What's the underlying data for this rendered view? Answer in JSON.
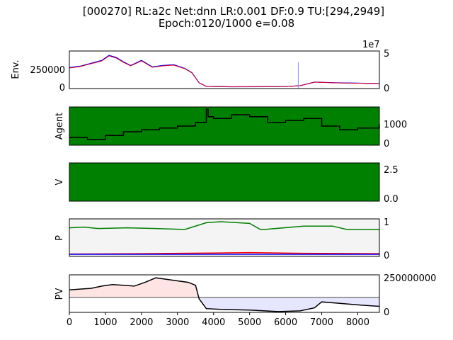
{
  "title_line1": "[000270] RL:a2c Net:dnn LR:0.001 DF:0.9 TU:[294,2949]",
  "title_line2": "Epoch:0120/1000 e=0.08",
  "colors": {
    "price": "#e0002a",
    "price_alt": "#0000ff",
    "volume": "#8c8cff",
    "agent_bg": "#008000",
    "v_bg": "#008000",
    "p_green": "#008000",
    "p_red": "#ff0000",
    "p_blue": "#0000ff",
    "pv_pos_fill": "#ffe4e4",
    "pv_neg_fill": "#e6e6ff",
    "pv_line": "#000000",
    "baseline": "#808080"
  },
  "chart_data": [
    {
      "type": "line",
      "ylabel": "Env.",
      "left_ticks": [
        "250000",
        "0"
      ],
      "right_ticks": [
        "5",
        "0"
      ],
      "right_offset": "1e7",
      "x": [
        0,
        300,
        600,
        900,
        1100,
        1300,
        1500,
        1700,
        2000,
        2300,
        2600,
        2900,
        3200,
        3400,
        3600,
        3800,
        4500,
        5500,
        6000,
        6400,
        6800,
        7400,
        8000,
        8600
      ],
      "close": [
        270000,
        290000,
        330000,
        370000,
        440000,
        410000,
        350000,
        300000,
        370000,
        280000,
        300000,
        310000,
        260000,
        200000,
        60000,
        10000,
        5000,
        6000,
        8000,
        20000,
        70000,
        60000,
        55000,
        50000
      ],
      "volume_peak_x": 6350,
      "volume_peak": 35000000
    },
    {
      "type": "line",
      "ylabel": "Agent",
      "right_ticks": [
        "1000",
        "0"
      ],
      "ylim": [
        0,
        1800
      ],
      "x": [
        0,
        500,
        1000,
        1500,
        2000,
        2500,
        3000,
        3500,
        3800,
        3850,
        4000,
        4500,
        5000,
        5500,
        6000,
        6500,
        7000,
        7500,
        8000,
        8600
      ],
      "values": [
        300,
        200,
        400,
        600,
        700,
        800,
        900,
        1100,
        1800,
        1400,
        1300,
        1500,
        1400,
        1100,
        1200,
        1300,
        900,
        700,
        800,
        1000
      ]
    },
    {
      "type": "area",
      "ylabel": "V",
      "right_ticks": [
        "2.5",
        "0.0"
      ],
      "ylim": [
        0,
        3
      ]
    },
    {
      "type": "line",
      "ylabel": "P",
      "right_ticks": [
        "1",
        "0"
      ],
      "ylim": [
        0,
        1
      ],
      "series": [
        {
          "color": "green",
          "x": [
            0,
            400,
            800,
            1600,
            2400,
            3200,
            3800,
            4200,
            5000,
            5300,
            5400,
            6500,
            7300,
            7700,
            8600
          ],
          "values": [
            0.8,
            0.82,
            0.78,
            0.8,
            0.78,
            0.75,
            0.95,
            0.98,
            0.93,
            0.75,
            0.75,
            0.85,
            0.85,
            0.75,
            0.75
          ]
        },
        {
          "color": "red",
          "x": [
            0,
            2000,
            4200,
            5000,
            6500,
            8600
          ],
          "values": [
            0.03,
            0.04,
            0.06,
            0.07,
            0.05,
            0.04
          ]
        },
        {
          "color": "blue",
          "x": [
            0,
            4000,
            8600
          ],
          "values": [
            0.02,
            0.02,
            0.02
          ]
        }
      ]
    },
    {
      "type": "area",
      "ylabel": "PV",
      "right_ticks": [
        "250000000",
        "0"
      ],
      "ylim": [
        0,
        250000000
      ],
      "baseline": 100000000,
      "x": [
        0,
        300,
        600,
        900,
        1200,
        1500,
        1800,
        2100,
        2400,
        2700,
        3000,
        3300,
        3500,
        3600,
        3800,
        4200,
        5000,
        5800,
        6400,
        6800,
        7000,
        7500,
        8000,
        8600
      ],
      "values": [
        150000000,
        155000000,
        160000000,
        175000000,
        185000000,
        180000000,
        175000000,
        200000000,
        230000000,
        220000000,
        210000000,
        200000000,
        180000000,
        90000000,
        25000000,
        20000000,
        15000000,
        5000000,
        10000000,
        30000000,
        70000000,
        60000000,
        50000000,
        40000000
      ],
      "xticks": [
        "0",
        "1000",
        "2000",
        "3000",
        "4000",
        "5000",
        "6000",
        "7000",
        "8000"
      ],
      "xlim": [
        0,
        8600
      ]
    }
  ]
}
